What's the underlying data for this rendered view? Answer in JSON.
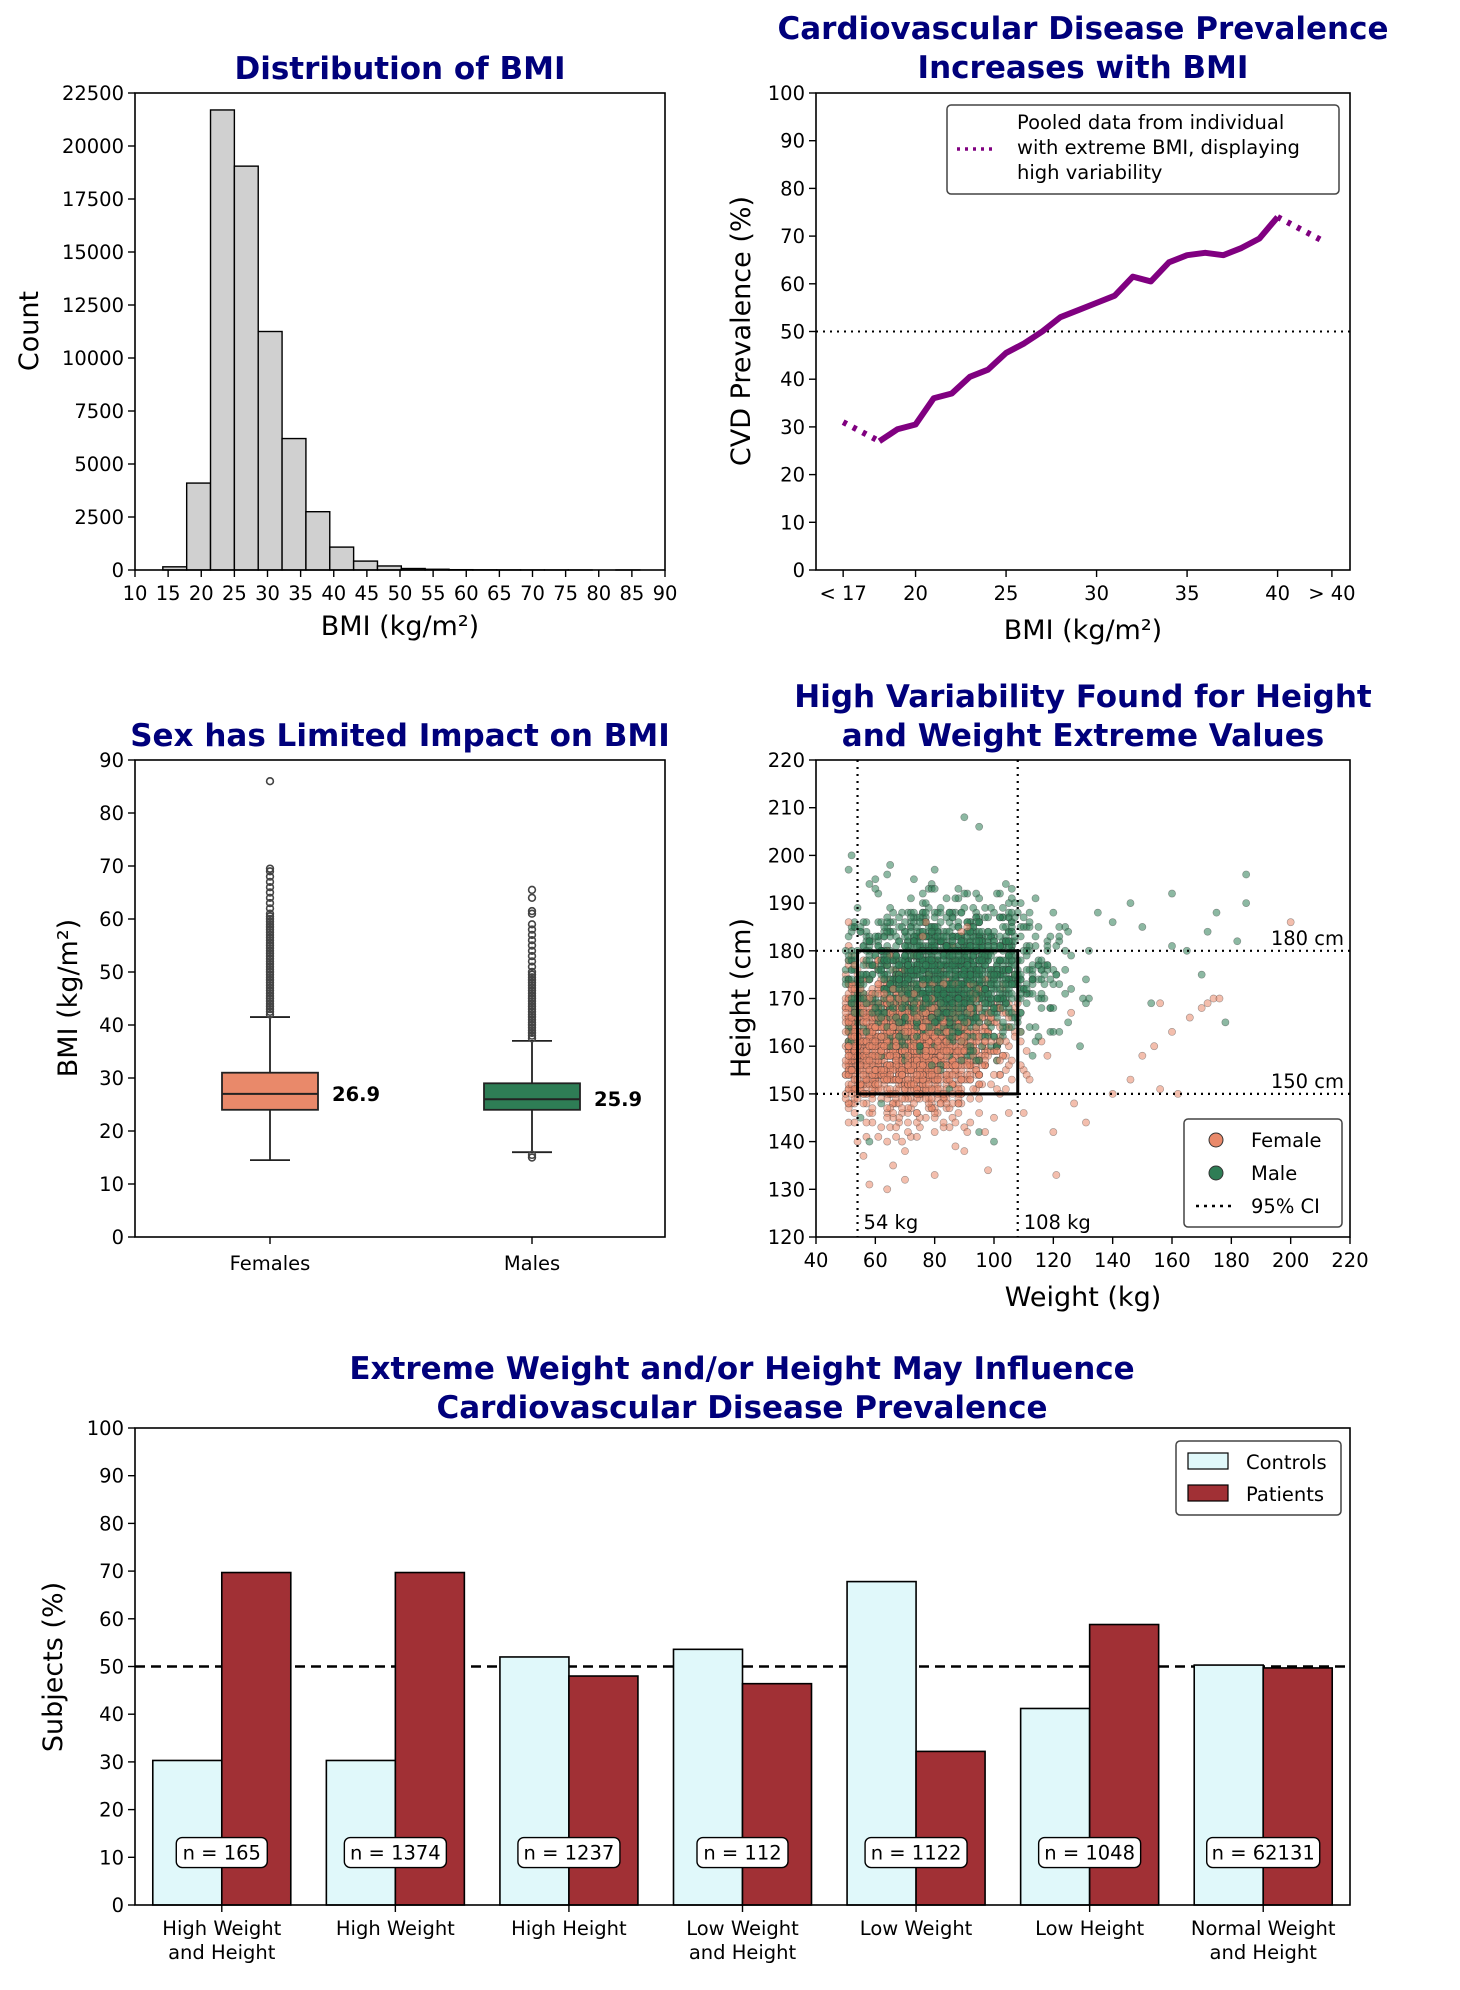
{
  "chart_data": [
    {
      "type": "bar",
      "id": "bmi-histogram",
      "title": "Distribution of BMI",
      "xlabel": "BMI (kg/m²)",
      "ylabel": "Count",
      "xlim": [
        10,
        90
      ],
      "ylim": [
        0,
        22500
      ],
      "xticks": [
        "10",
        "15",
        "20",
        "25",
        "30",
        "35",
        "40",
        "45",
        "50",
        "55",
        "60",
        "65",
        "70",
        "75",
        "80",
        "85",
        "90"
      ],
      "yticks": [
        "0",
        "2500",
        "5000",
        "7500",
        "10000",
        "12500",
        "15000",
        "17500",
        "20000",
        "22500"
      ],
      "bin_edges": [
        14.2,
        17.8,
        21.4,
        25.0,
        28.6,
        32.2,
        35.8,
        39.4,
        43.0,
        46.6,
        50.2,
        53.8,
        57.4,
        61.0,
        64.6,
        68.2,
        71.8,
        75.4,
        79.0,
        82.6,
        86.2
      ],
      "values": [
        150,
        4100,
        21700,
        19050,
        11250,
        6200,
        2750,
        1080,
        420,
        190,
        70,
        35,
        15,
        8,
        5,
        3,
        2,
        1,
        0,
        1
      ],
      "bar_color": "#d0d0d0",
      "grid": false
    },
    {
      "type": "line",
      "id": "cvd-prevalence",
      "title": [
        "Cardiovascular Disease Prevalence",
        "Increases with BMI"
      ],
      "xlabel": "BMI (kg/m²)",
      "ylabel": "CVD Prevalence (%)",
      "xlim": [
        14.5,
        44
      ],
      "ylim": [
        0,
        100
      ],
      "xtick_positions": [
        16,
        20,
        25,
        30,
        35,
        40,
        43
      ],
      "xticks": [
        "< 17",
        "20",
        "25",
        "30",
        "35",
        "40",
        "> 40"
      ],
      "yticks": [
        "0",
        "10",
        "20",
        "30",
        "40",
        "50",
        "60",
        "70",
        "80",
        "90",
        "100"
      ],
      "hline": 50,
      "series": [
        {
          "style": "solid",
          "color": "#800080",
          "x": [
            18,
            19,
            20,
            21,
            22,
            23,
            24,
            25,
            26,
            27,
            28,
            29,
            30,
            31,
            32,
            33,
            34,
            35,
            36,
            37,
            38,
            39,
            40
          ],
          "y": [
            27,
            29.5,
            30.5,
            36,
            37,
            40.5,
            42,
            45.5,
            47.5,
            50,
            53,
            54.5,
            56,
            57.5,
            61.5,
            60.5,
            64.5,
            66,
            66.5,
            66,
            67.5,
            69.5,
            74
          ]
        },
        {
          "style": "dotted",
          "color": "#800080",
          "x": [
            16,
            18
          ],
          "y": [
            31,
            27
          ]
        },
        {
          "name": "Pooled data from individual with extreme BMI, displaying high variability",
          "style": "dotted",
          "color": "#800080",
          "x": [
            40,
            42.5
          ],
          "y": [
            74,
            69
          ]
        }
      ],
      "legend": {
        "position": "top-right",
        "lines": [
          "Pooled data from individual",
          "with extreme BMI, displaying",
          "high variability"
        ]
      }
    },
    {
      "type": "box",
      "id": "bmi-by-sex",
      "title": "Sex has Limited Impact on BMI",
      "ylabel": "BMI (kg/m²)",
      "ylim": [
        0,
        90
      ],
      "yticks": [
        "0",
        "10",
        "20",
        "30",
        "40",
        "50",
        "60",
        "70",
        "80",
        "90"
      ],
      "categories": [
        "Females",
        "Males"
      ],
      "boxes": [
        {
          "name": "Females",
          "whisker_low": 14.5,
          "q1": 24,
          "median": 27,
          "q3": 31,
          "whisker_high": 41.5,
          "median_label": "26.9",
          "color": "#e9896a",
          "fliers": [
            42,
            42.5,
            43,
            43.5,
            44,
            44.5,
            45,
            45.5,
            46,
            46.5,
            47,
            47.5,
            48,
            48.5,
            49,
            49.5,
            50,
            50.5,
            51,
            51.5,
            52,
            52.5,
            53,
            53.5,
            54,
            54.5,
            55,
            55.5,
            56,
            56.5,
            57,
            57.5,
            58,
            58.5,
            59,
            59.5,
            60,
            60.5,
            61,
            62,
            63,
            64,
            65,
            66,
            67,
            68,
            69,
            69.5,
            86
          ]
        },
        {
          "name": "Males",
          "whisker_low": 16,
          "q1": 24,
          "median": 26,
          "q3": 29,
          "whisker_high": 37,
          "median_label": "25.9",
          "color": "#2e7d55",
          "fliers": [
            15,
            15.5,
            37.5,
            38,
            38.5,
            39,
            39.5,
            40,
            40.5,
            41,
            41.5,
            42,
            42.5,
            43,
            43.5,
            44,
            44.5,
            45,
            45.5,
            46,
            46.5,
            47,
            47.5,
            48,
            48.5,
            49,
            49.5,
            50,
            51,
            52,
            53,
            54,
            55,
            56,
            57,
            58,
            59,
            61,
            61.5,
            64,
            65.5
          ]
        }
      ]
    },
    {
      "type": "scatter",
      "id": "height-weight",
      "title": [
        "High Variability Found for Height",
        "and Weight Extreme Values"
      ],
      "xlabel": "Weight (kg)",
      "ylabel": "Height (cm)",
      "xlim": [
        40,
        220
      ],
      "ylim": [
        120,
        220
      ],
      "xticks": [
        "40",
        "60",
        "80",
        "100",
        "120",
        "140",
        "160",
        "180",
        "200",
        "220"
      ],
      "yticks": [
        "120",
        "130",
        "140",
        "150",
        "160",
        "170",
        "180",
        "190",
        "200",
        "210",
        "220"
      ],
      "vlines": [
        {
          "x": 54,
          "label": "54 kg"
        },
        {
          "x": 108,
          "label": "108 kg"
        }
      ],
      "hlines": [
        {
          "y": 180,
          "label": "180 cm"
        },
        {
          "y": 150,
          "label": "150 cm"
        }
      ],
      "rect": {
        "x0": 54,
        "x1": 108,
        "y0": 150,
        "y1": 180
      },
      "series": [
        {
          "name": "Female",
          "color": "#e9896a",
          "weight_mean": 72,
          "weight_sd": 14,
          "height_mean": 161,
          "height_sd": 7,
          "outliers": [
            [
              200,
              186
            ],
            [
              176,
              170
            ],
            [
              170,
              168
            ],
            [
              166,
              166
            ],
            [
              160,
              163
            ],
            [
              154,
              160
            ],
            [
              150,
              158
            ],
            [
              146,
              153
            ],
            [
              140,
              150
            ],
            [
              156,
              151
            ],
            [
              172,
              169
            ],
            [
              131,
              144
            ],
            [
              127,
              148
            ],
            [
              120,
              142
            ],
            [
              110,
              146
            ],
            [
              58,
              131
            ],
            [
              64,
              130
            ],
            [
              70,
              132
            ],
            [
              80,
              133
            ],
            [
              90,
              138
            ],
            [
              98,
              134
            ],
            [
              121,
              133
            ],
            [
              162,
              150
            ],
            [
              168,
              141
            ],
            [
              174,
              170
            ],
            [
              156,
              169
            ],
            [
              62,
              143
            ],
            [
              66,
              135
            ]
          ]
        },
        {
          "name": "Male",
          "color": "#2e7d55",
          "weight_mean": 84,
          "weight_sd": 16,
          "height_mean": 175,
          "height_sd": 7,
          "outliers": [
            [
              185,
              196
            ],
            [
              185,
              190
            ],
            [
              175,
              188
            ],
            [
              160,
              192
            ],
            [
              150,
              185
            ],
            [
              146,
              190
            ],
            [
              140,
              186
            ],
            [
              135,
              188
            ],
            [
              170,
              175
            ],
            [
              165,
              180
            ],
            [
              178,
              165
            ],
            [
              182,
              182
            ],
            [
              172,
              184
            ],
            [
              160,
              181
            ],
            [
              55,
              145
            ],
            [
              58,
              140
            ],
            [
              62,
              148
            ],
            [
              95,
              142
            ],
            [
              100,
              140
            ],
            [
              90,
              208
            ],
            [
              95,
              206
            ],
            [
              125,
              165
            ],
            [
              130,
              170
            ],
            [
              60,
              195
            ],
            [
              65,
              198
            ],
            [
              80,
              197
            ]
          ]
        }
      ],
      "legend_items": [
        "Female",
        "Male",
        "95% CI"
      ],
      "legend_position": "lower-right"
    },
    {
      "type": "bar",
      "id": "extreme-groups",
      "title": [
        "Extreme Weight and/or Height May Influence",
        "Cardiovascular Disease Prevalence"
      ],
      "ylabel": "Subjects (%)",
      "ylim": [
        0,
        100
      ],
      "yticks": [
        "0",
        "10",
        "20",
        "30",
        "40",
        "50",
        "60",
        "70",
        "80",
        "90",
        "100"
      ],
      "hline": 50,
      "categories": [
        [
          "High Weight",
          "and Height"
        ],
        [
          "High Weight"
        ],
        [
          "High Height"
        ],
        [
          "Low Weight",
          "and Height"
        ],
        [
          "Low Weight"
        ],
        [
          "Low Height"
        ],
        [
          "Normal Weight",
          "and Height"
        ]
      ],
      "n_labels": [
        "n = 165",
        "n = 1374",
        "n = 1237",
        "n = 112",
        "n = 1122",
        "n = 1048",
        "n = 62131"
      ],
      "series": [
        {
          "name": "Controls",
          "color": "#e0f8fa",
          "values": [
            30.3,
            30.3,
            52,
            53.6,
            67.8,
            41.2,
            50.3
          ]
        },
        {
          "name": "Patients",
          "color": "#a13035",
          "values": [
            69.7,
            69.7,
            48,
            46.4,
            32.2,
            58.8,
            49.7
          ]
        }
      ],
      "legend_position": "top-right"
    }
  ]
}
